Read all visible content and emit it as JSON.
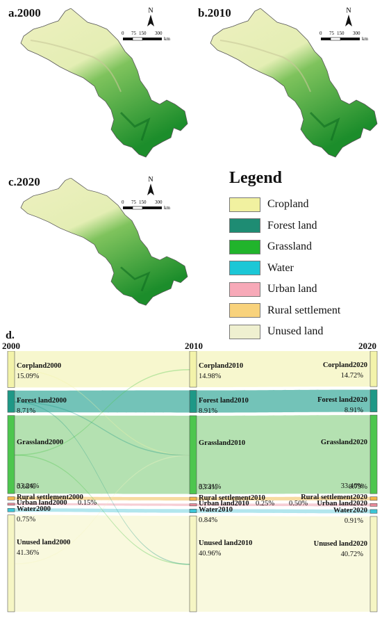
{
  "panels": {
    "a": "a.2000",
    "b": "b.2010",
    "c": "c.2020",
    "d": "d."
  },
  "compass": {
    "north": "N"
  },
  "scalebar": {
    "ticks": [
      "0",
      "75",
      "150",
      "300"
    ],
    "unit": "km"
  },
  "legend": {
    "title": "Legend",
    "items": [
      {
        "label": "Cropland",
        "color": "#f1f1a0"
      },
      {
        "label": "Forest land",
        "color": "#1e8c73"
      },
      {
        "label": "Grassland",
        "color": "#21b42c"
      },
      {
        "label": "Water",
        "color": "#1cc7d6"
      },
      {
        "label": "Urban land",
        "color": "#f7a9b8"
      },
      {
        "label": "Rural settlement",
        "color": "#f8d27c"
      },
      {
        "label": "Unused land",
        "color": "#eff0d0"
      }
    ]
  },
  "sankey": {
    "years": [
      "2000",
      "2010",
      "2020"
    ],
    "nodes": [
      {
        "key": "crop",
        "color": "#f3f3aa",
        "flow": "#f6f6c6",
        "labels": [
          "Corpland2000",
          "Corpland2010",
          "Corpland2020"
        ],
        "pcts": [
          "15.09%",
          "14.98%",
          "14.72%"
        ],
        "values": [
          15.09,
          14.98,
          14.72
        ]
      },
      {
        "key": "forest",
        "color": "#1e9886",
        "flow": "#5bb8ac",
        "labels": [
          "Forest land2000",
          "Forest land2010",
          "Forest land2020"
        ],
        "pcts": [
          "8.71%",
          "8.91%",
          "8.91%"
        ],
        "values": [
          8.71,
          8.91,
          8.91
        ]
      },
      {
        "key": "grass",
        "color": "#4dc64e",
        "flow": "#a7dca3",
        "labels": [
          "Grassland2000",
          "Grassland2010",
          "Grassland2020"
        ],
        "pcts": [
          "33.24%",
          "33.31%",
          "33.46%"
        ],
        "values": [
          33.24,
          33.31,
          33.46
        ]
      },
      {
        "key": "rural",
        "color": "#f3b64a",
        "flow": "#f6d590",
        "labels": [
          "Rural settlement2000",
          "Rural settlement2010",
          "Rural settlement2020"
        ],
        "pcts": [
          "0.68%",
          "0.74%",
          "0.79%"
        ],
        "values": [
          0.68,
          0.74,
          0.79
        ]
      },
      {
        "key": "urban",
        "color": "#e98b9a",
        "flow": "#f4c6ce",
        "labels": [
          "Urban land2000",
          "Urban land2010",
          "Urban land2020"
        ],
        "pcts": [
          "0.15%",
          "0.25%",
          "0.50%"
        ],
        "values": [
          0.15,
          0.25,
          0.5
        ]
      },
      {
        "key": "water",
        "color": "#3cc6d6",
        "flow": "#a4e2ea",
        "labels": [
          "Water2000",
          "Water2010",
          "Water2020"
        ],
        "pcts": [
          "0.75%",
          "0.84%",
          "0.91%"
        ],
        "values": [
          0.75,
          0.84,
          0.91
        ]
      },
      {
        "key": "unused",
        "color": "#f6f6c4",
        "flow": "#f8f8d8",
        "labels": [
          "Unused land2000",
          "Unused land2010",
          "Unused land2020"
        ],
        "pcts": [
          "41.36%",
          "40.96%",
          "40.72%"
        ],
        "values": [
          41.36,
          40.96,
          40.72
        ]
      }
    ]
  }
}
